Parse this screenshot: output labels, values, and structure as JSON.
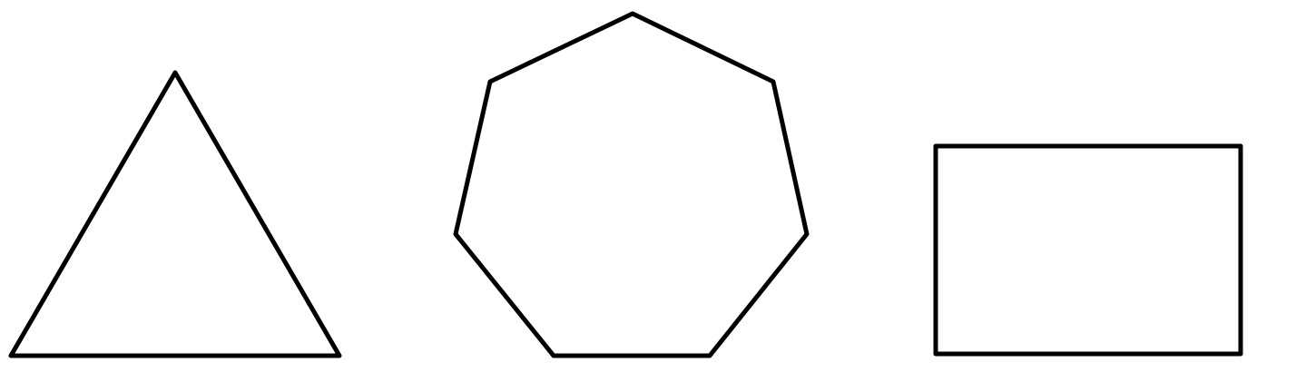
{
  "shapes": [
    {
      "id": "triangle",
      "type": "polygon",
      "sides": 3
    },
    {
      "id": "heptagon",
      "type": "polygon",
      "sides": 7
    },
    {
      "id": "rectangle",
      "type": "rectangle",
      "sides": 4
    }
  ],
  "colors": {
    "stroke": "#000000",
    "background": "#ffffff"
  }
}
